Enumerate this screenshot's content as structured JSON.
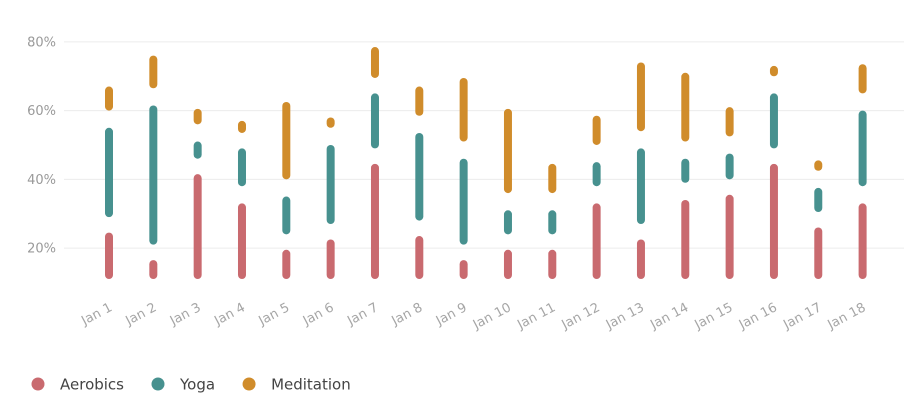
{
  "chart_data": {
    "type": "bar",
    "subtype": "floating-range-stacked",
    "categories": [
      "Jan 1",
      "Jan 2",
      "Jan 3",
      "Jan 4",
      "Jan 5",
      "Jan 6",
      "Jan 7",
      "Jan 8",
      "Jan 9",
      "Jan 10",
      "Jan 11",
      "Jan 12",
      "Jan 13",
      "Jan 14",
      "Jan 15",
      "Jan 16",
      "Jan 17",
      "Jan 18"
    ],
    "baseline": 11,
    "series": [
      {
        "name": "Aerobics",
        "color": "#c96a6f",
        "ranges": [
          [
            11,
            24.5
          ],
          [
            11,
            16.5
          ],
          [
            11,
            41.5
          ],
          [
            11,
            33
          ],
          [
            11,
            19.5
          ],
          [
            11,
            22.5
          ],
          [
            11,
            44.5
          ],
          [
            11,
            23.5
          ],
          [
            11,
            16.5
          ],
          [
            11,
            19.5
          ],
          [
            11,
            19.5
          ],
          [
            11,
            33
          ],
          [
            11,
            22.5
          ],
          [
            11,
            34
          ],
          [
            11,
            35.5
          ],
          [
            11,
            44.5
          ],
          [
            11,
            26
          ],
          [
            11,
            33
          ]
        ]
      },
      {
        "name": "Yoga",
        "color": "#47918f",
        "ranges": [
          [
            29,
            55
          ],
          [
            21,
            61.5
          ],
          [
            46,
            51
          ],
          [
            38,
            49
          ],
          [
            24,
            35
          ],
          [
            27,
            50
          ],
          [
            49,
            65
          ],
          [
            28,
            53.5
          ],
          [
            21,
            46
          ],
          [
            24,
            31
          ],
          [
            24,
            31
          ],
          [
            38,
            45
          ],
          [
            27,
            49
          ],
          [
            39,
            46
          ],
          [
            40,
            47.5
          ],
          [
            49,
            65
          ],
          [
            30.5,
            37.5
          ],
          [
            38,
            60
          ]
        ]
      },
      {
        "name": "Meditation",
        "color": "#d08c2b",
        "ranges": [
          [
            60,
            67
          ],
          [
            66.5,
            76
          ],
          [
            56,
            60.5
          ],
          [
            53.5,
            57
          ],
          [
            40,
            62.5
          ],
          [
            55,
            58
          ],
          [
            69.5,
            78.5
          ],
          [
            58.5,
            67
          ],
          [
            51,
            69.5
          ],
          [
            36,
            60.5
          ],
          [
            36,
            44.5
          ],
          [
            50,
            58.5
          ],
          [
            54,
            74
          ],
          [
            51,
            71
          ],
          [
            52.5,
            61
          ],
          [
            70,
            73
          ],
          [
            42.5,
            45.5
          ],
          [
            65,
            73.5
          ]
        ]
      }
    ],
    "yticks": [
      20,
      40,
      60,
      80
    ],
    "ytick_labels": [
      "20%",
      "40%",
      "60%",
      "80%"
    ],
    "ylim": [
      11,
      82
    ],
    "legend_position": "bottom-left",
    "grid": true
  }
}
